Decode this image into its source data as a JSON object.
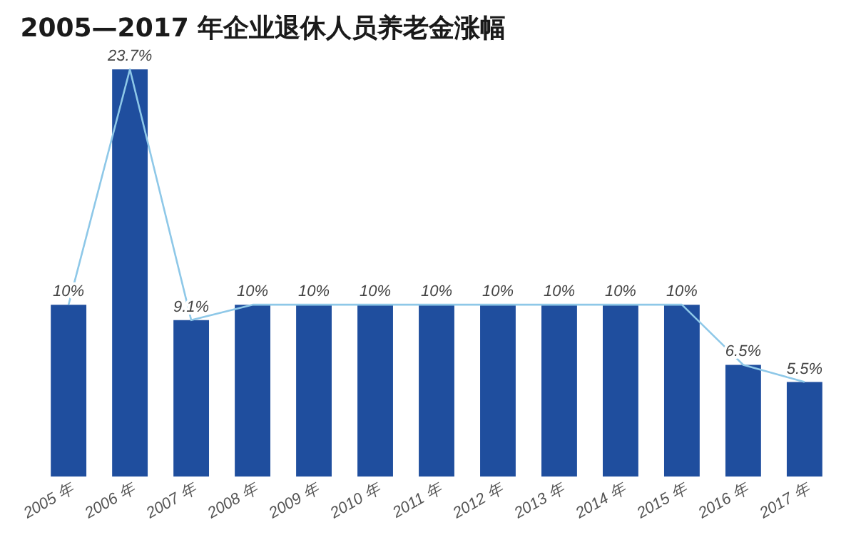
{
  "chart_data": {
    "type": "bar",
    "title": "2005—2017 年企业退休人员养老金涨幅",
    "categories": [
      "2005 年",
      "2006 年",
      "2007 年",
      "2008 年",
      "2009 年",
      "2010 年",
      "2011 年",
      "2012 年",
      "2013 年",
      "2014 年",
      "2015 年",
      "2016 年",
      "2017 年"
    ],
    "series": [
      {
        "color": "#1f4e9e",
        "values": [
          10,
          23.7,
          9.1,
          10,
          10,
          10,
          10,
          10,
          10,
          10,
          10,
          6.5,
          5.5
        ],
        "value_labels": [
          "10%",
          "23.7%",
          "9.1%",
          "10%",
          "10%",
          "10%",
          "10%",
          "10%",
          "10%",
          "10%",
          "10%",
          "6.5%",
          "5.5%"
        ]
      },
      {
        "type": "line",
        "color": "#8ec8e8",
        "values": [
          10,
          23.7,
          9.1,
          10,
          10,
          10,
          10,
          10,
          10,
          10,
          10,
          6.5,
          5.5
        ]
      }
    ],
    "grid": false,
    "tick_labels": "x"
  }
}
